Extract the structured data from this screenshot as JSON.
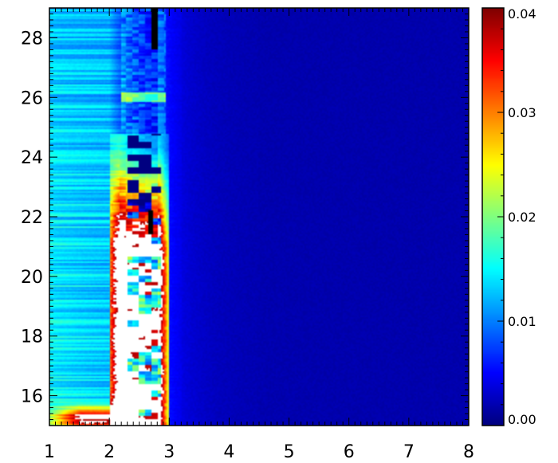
{
  "chart_data": {
    "type": "heatmap",
    "title": "",
    "xlabel": "",
    "ylabel": "",
    "xlim": [
      1,
      8
    ],
    "ylim": [
      15,
      29
    ],
    "x_ticks": [
      "1",
      "2",
      "3",
      "4",
      "5",
      "6",
      "7",
      "8"
    ],
    "y_ticks": [
      "16",
      "18",
      "20",
      "22",
      "24",
      "26",
      "28"
    ],
    "colorbar": {
      "min": 0.0,
      "max": 0.04,
      "ticks": [
        "0.00",
        "0.01",
        "0.02",
        "0.03",
        "0.04"
      ],
      "colormap": "jet"
    },
    "saturated_color": "#ffffff",
    "missing_color": "#000000",
    "features": [
      {
        "name": "low-x warm band",
        "x_range": [
          1,
          2.1
        ],
        "y_range": [
          15,
          15.7
        ],
        "value": 0.035
      },
      {
        "name": "saturated column",
        "x_range": [
          2.1,
          2.9
        ],
        "y_range": [
          15,
          24.5
        ],
        "value": 0.045
      },
      {
        "name": "background",
        "x_range": [
          3,
          8
        ],
        "y_range": [
          15,
          29
        ],
        "value": 0.002
      }
    ]
  }
}
